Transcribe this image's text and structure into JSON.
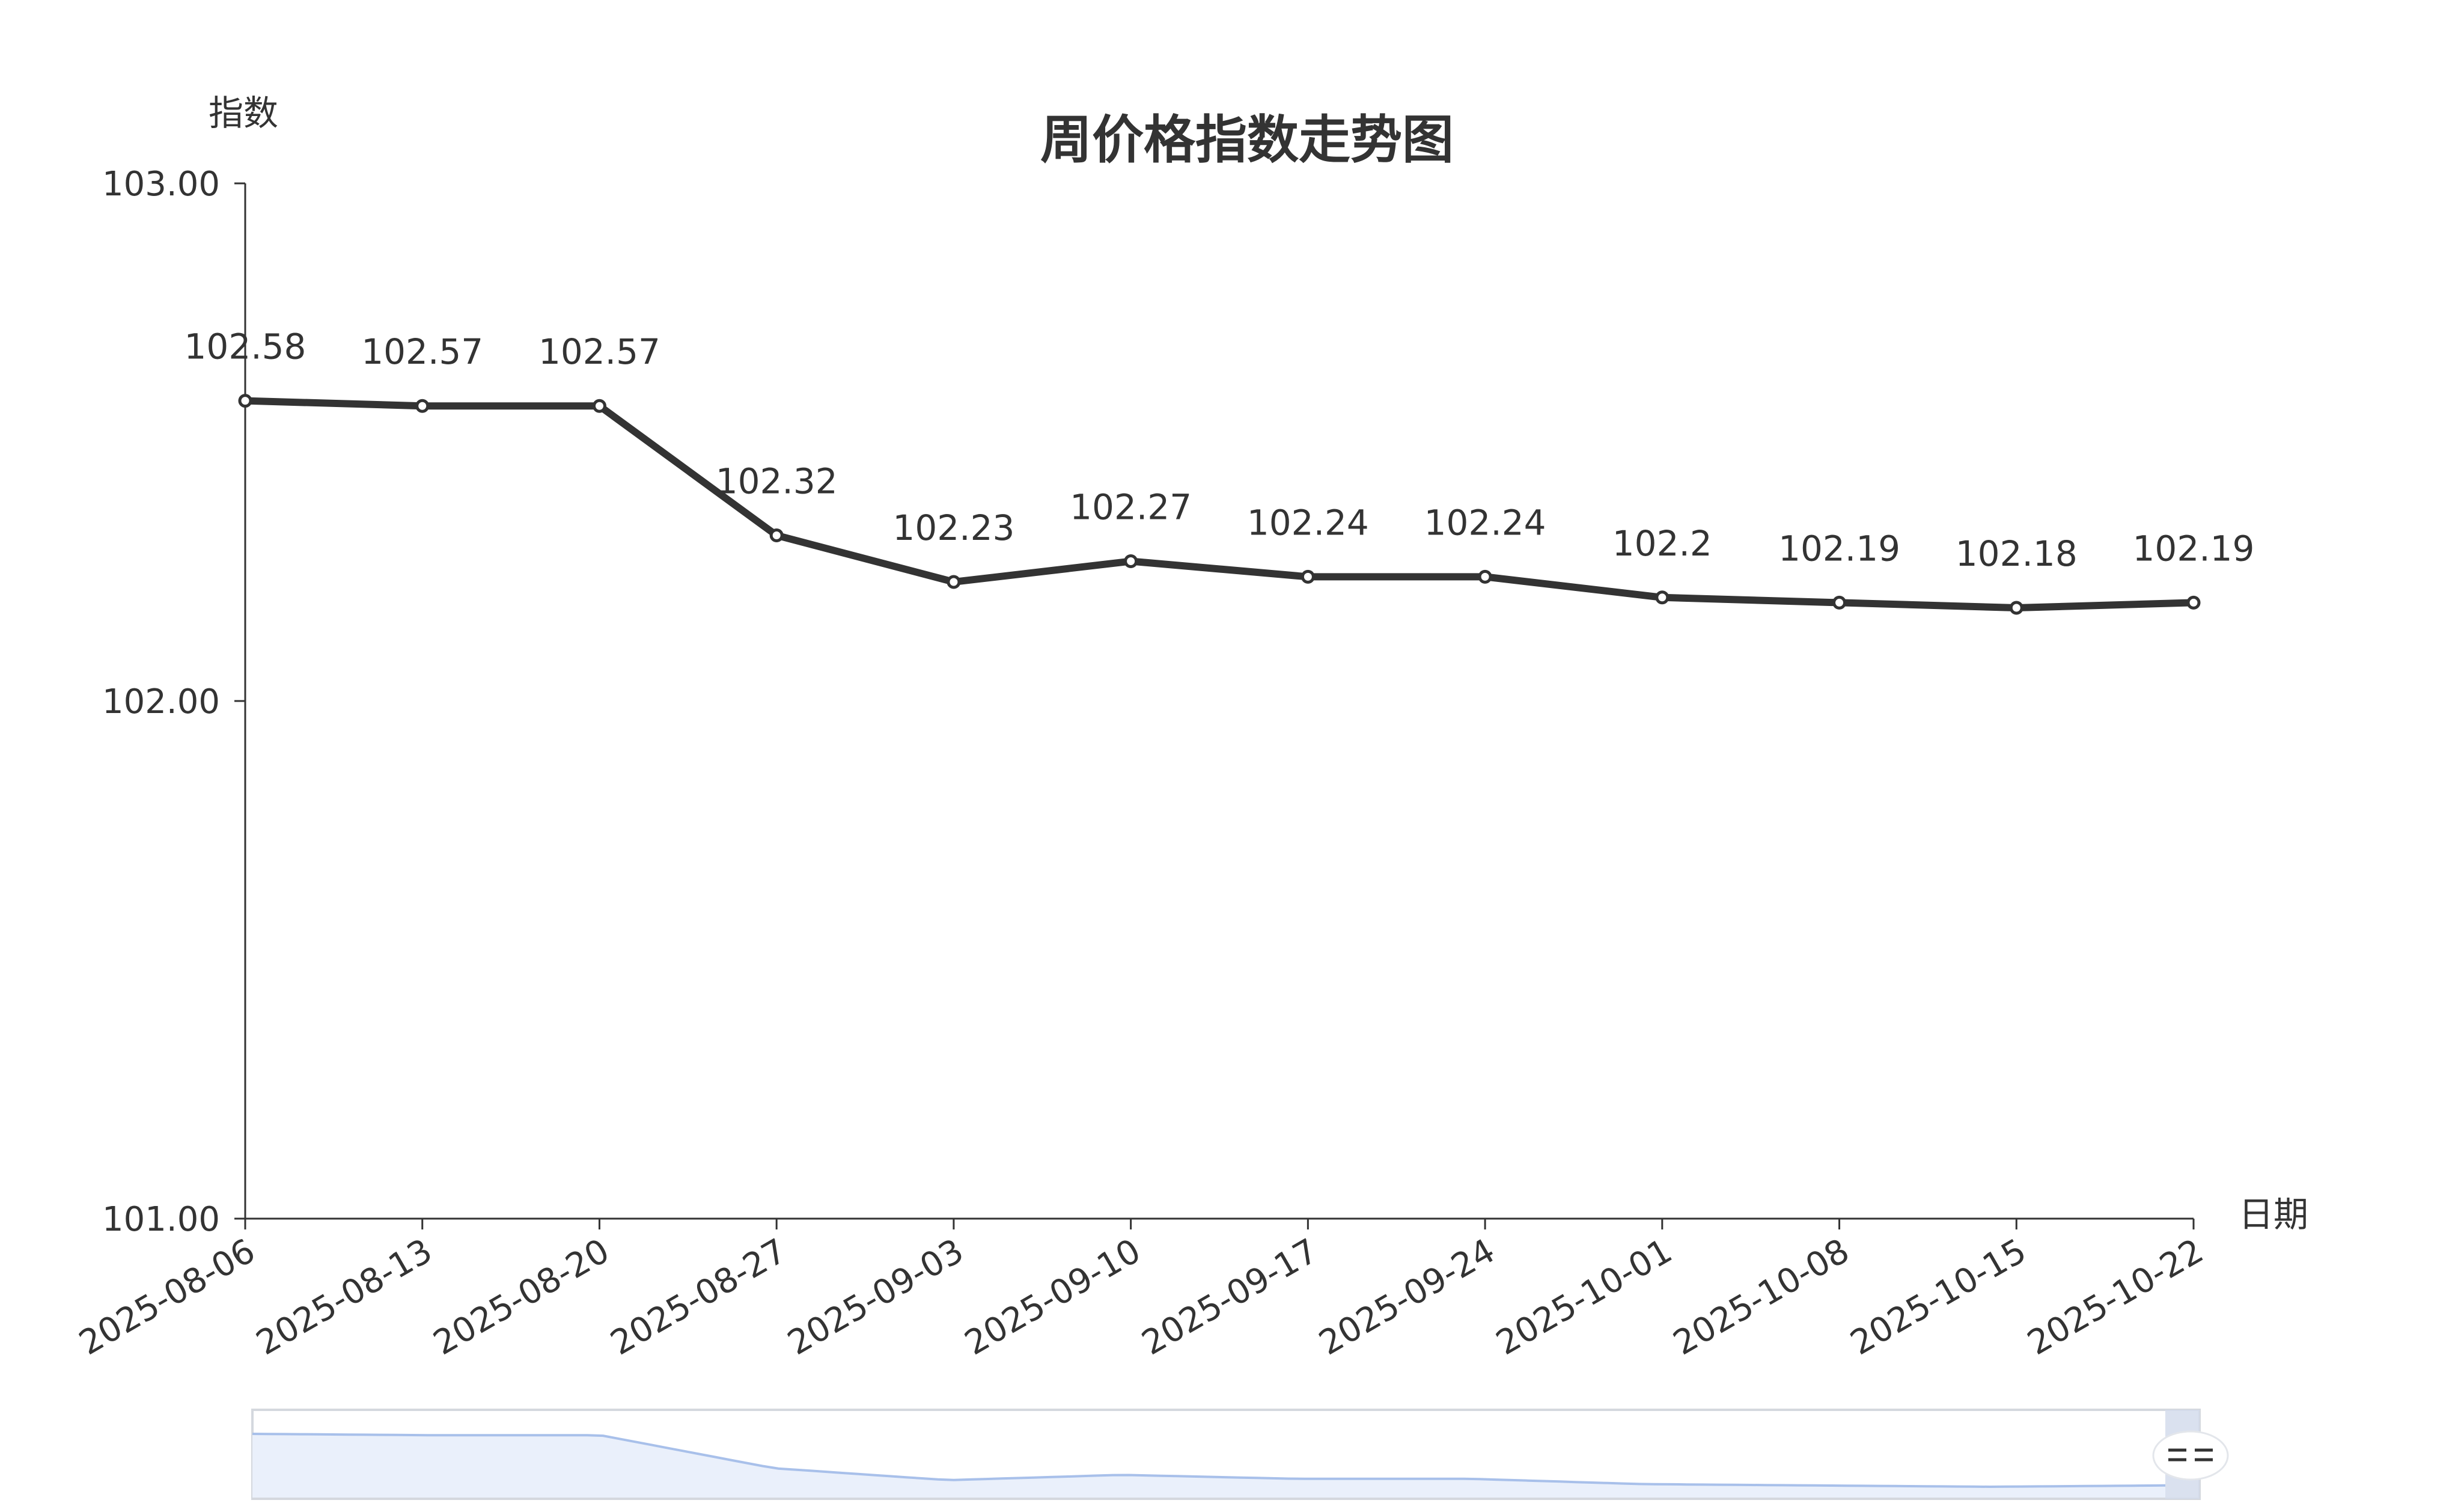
{
  "chart_data": {
    "type": "line",
    "title": "周价格指数走势图",
    "xlabel": "日期",
    "ylabel": "指数",
    "ylim": [
      101,
      103
    ],
    "yticks": [
      "103.00",
      "102.00",
      "101.00"
    ],
    "x": [
      "2025-08-06",
      "2025-08-13",
      "2025-08-20",
      "2025-08-27",
      "2025-09-03",
      "2025-09-10",
      "2025-09-17",
      "2025-09-24",
      "2025-10-01",
      "2025-10-08",
      "2025-10-15",
      "2025-10-22"
    ],
    "series": [
      {
        "values": [
          102.58,
          102.57,
          102.57,
          102.32,
          102.23,
          102.27,
          102.24,
          102.24,
          102.2,
          102.19,
          102.18,
          102.19
        ],
        "labels": [
          "102.58",
          "102.57",
          "102.57",
          "102.32",
          "102.23",
          "102.27",
          "102.24",
          "102.24",
          "102.2",
          "102.19",
          "102.18",
          "102.19"
        ]
      }
    ],
    "grid": false,
    "datazoom": {
      "present": true,
      "range": "full",
      "handle": "right"
    },
    "colors": {
      "line": "#333333",
      "text": "#333333",
      "axis": "#333333",
      "zoom_fill": "#eaf0fb",
      "zoom_line": "#a8c0ea",
      "zoom_border": "#d4d8de",
      "zoom_handle": "#d4dcec"
    }
  }
}
